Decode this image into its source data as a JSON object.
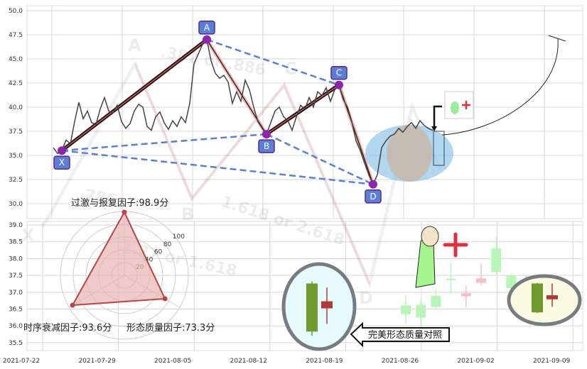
{
  "chart_data": [
    {
      "type": "line",
      "title": "",
      "ylim": [
        29,
        50.3
      ],
      "y_ticks": [
        "50.0",
        "47.5",
        "45.0",
        "42.5",
        "40.0",
        "37.5",
        "35.0",
        "32.5",
        "30.0"
      ],
      "grid": true,
      "price": [
        35.8,
        35.2,
        35.5,
        36.6,
        36.2,
        38.5,
        40.5,
        38.8,
        39.6,
        38.4,
        38.2,
        39.8,
        41.0,
        39.6,
        39.4,
        40.2,
        38.5,
        37.8,
        38.3,
        39.6,
        40.3,
        40.0,
        38.0,
        37.6,
        39.0,
        39.5,
        38.4,
        37.7,
        38.6,
        38.0,
        39.0,
        38.4,
        40.4,
        44.5,
        45.5,
        46.5,
        47.0,
        44.8,
        43.5,
        43.0,
        43.3,
        42.6,
        40.4,
        41.6,
        40.6,
        42.8,
        41.8,
        40.0,
        38.5,
        37.8,
        37.2,
        38.4,
        39.6,
        40.0,
        39.0,
        38.6,
        37.6,
        39.0,
        40.2,
        39.8,
        41.0,
        40.0,
        41.6,
        41.2,
        42.0,
        40.6,
        41.8,
        42.3,
        40.8,
        40.0,
        38.5,
        36.5,
        35.5,
        34.2,
        33.0,
        32.0,
        33.0,
        35.8,
        36.5,
        37.0,
        37.2,
        37.8,
        37.4,
        38.0,
        38.4,
        37.8,
        38.6,
        38.1,
        37.8,
        37.6
      ],
      "pattern_points": [
        {
          "label": "X",
          "index": 2,
          "value": 35.5
        },
        {
          "label": "A",
          "index": 36,
          "value": 47.0
        },
        {
          "label": "B",
          "index": 50,
          "value": 37.2
        },
        {
          "label": "C",
          "index": 67,
          "value": 42.3
        },
        {
          "label": "D",
          "index": 75,
          "value": 32.0
        }
      ],
      "watermark_letters": [
        "X",
        "A",
        "B",
        "C",
        "D"
      ],
      "watermark_ratios": [
        ".382 or .886",
        ".786",
        "1.618 or 2.618",
        "1.27 or 1.618"
      ],
      "colors": {
        "price": "#444444",
        "leg": "#111111",
        "leg_inner": "#d9534f",
        "dashed": "#5b7fd6",
        "point": "#8e24aa",
        "label_box": "#5b7fd6",
        "ellipse": "#8ec5ea",
        "ellipse_inner": "#c9b8a8"
      }
    },
    {
      "type": "candlestick",
      "ylim": [
        35.2,
        39.1
      ],
      "y_ticks": [
        "39.0",
        "38.5",
        "38.0",
        "37.5",
        "37.0",
        "36.5",
        "36.0",
        "35.5"
      ],
      "x_ticks": [
        "2021-07-22",
        "2021-07-29",
        "2021-08-05",
        "2021-08-12",
        "2021-08-19",
        "2021-08-26",
        "2021-09-02",
        "2021-09-09"
      ],
      "grid": true,
      "candles": [
        {
          "open": 36.35,
          "close": 36.61,
          "high": 36.9,
          "low": 36.06
        },
        {
          "open": 36.25,
          "close": 36.63,
          "high": 36.78,
          "low": 35.98
        },
        {
          "open": 36.56,
          "close": 36.89,
          "high": 37.09,
          "low": 36.48
        },
        {
          "open": 37.37,
          "close": 37.4,
          "high": 37.88,
          "low": 36.95
        },
        {
          "open": 36.97,
          "close": 36.88,
          "high": 37.2,
          "low": 36.55
        },
        {
          "open": 37.41,
          "close": 37.28,
          "high": 37.85,
          "low": 37.22
        },
        {
          "open": 37.6,
          "close": 38.3,
          "high": 38.66,
          "low": 37.52
        },
        {
          "open": 37.12,
          "close": 37.5,
          "high": 37.55,
          "low": 37.02
        },
        {
          "open": 37.37,
          "close": 37.33,
          "high": 37.5,
          "low": 36.85
        }
      ],
      "reference_candles": {
        "perfect": [
          {
            "open": 35.83,
            "close": 37.26,
            "high": 37.32,
            "low": 35.7
          },
          {
            "open": 36.73,
            "close": 36.52,
            "high": 37.14,
            "low": 36.06
          }
        ],
        "current": [
          {
            "open": 36.4,
            "close": 37.26,
            "high": 37.28,
            "low": 36.38
          },
          {
            "open": 36.91,
            "close": 36.79,
            "high": 37.26,
            "low": 36.57
          }
        ]
      },
      "comparison_label": "完美形态质量对照",
      "colors": {
        "up_light": "#b8f5b8",
        "down_light": "#f8bcc4",
        "up_dark": "#6e9a2e",
        "down_dark": "#b03a3a",
        "oval_left": "#e6fbfb",
        "oval_right": "#fbfbe4",
        "oval_stroke": "#777c80"
      }
    },
    {
      "type": "radar",
      "r_ticks": [
        "20",
        "40",
        "60",
        "80",
        "100"
      ],
      "axes": [
        {
          "label": "过激与报复因子",
          "value": 98.9,
          "text": "过激与报复因子:98.9分"
        },
        {
          "label": "时序衰减因子",
          "value": 93.6,
          "text": "时序衰减因子:93.6分"
        },
        {
          "label": "形态质量因子",
          "value": 73.3,
          "text": "形态质量因子:73.3分"
        }
      ],
      "colors": {
        "fill": "#e8b4b4",
        "stroke": "#b84444"
      }
    }
  ]
}
